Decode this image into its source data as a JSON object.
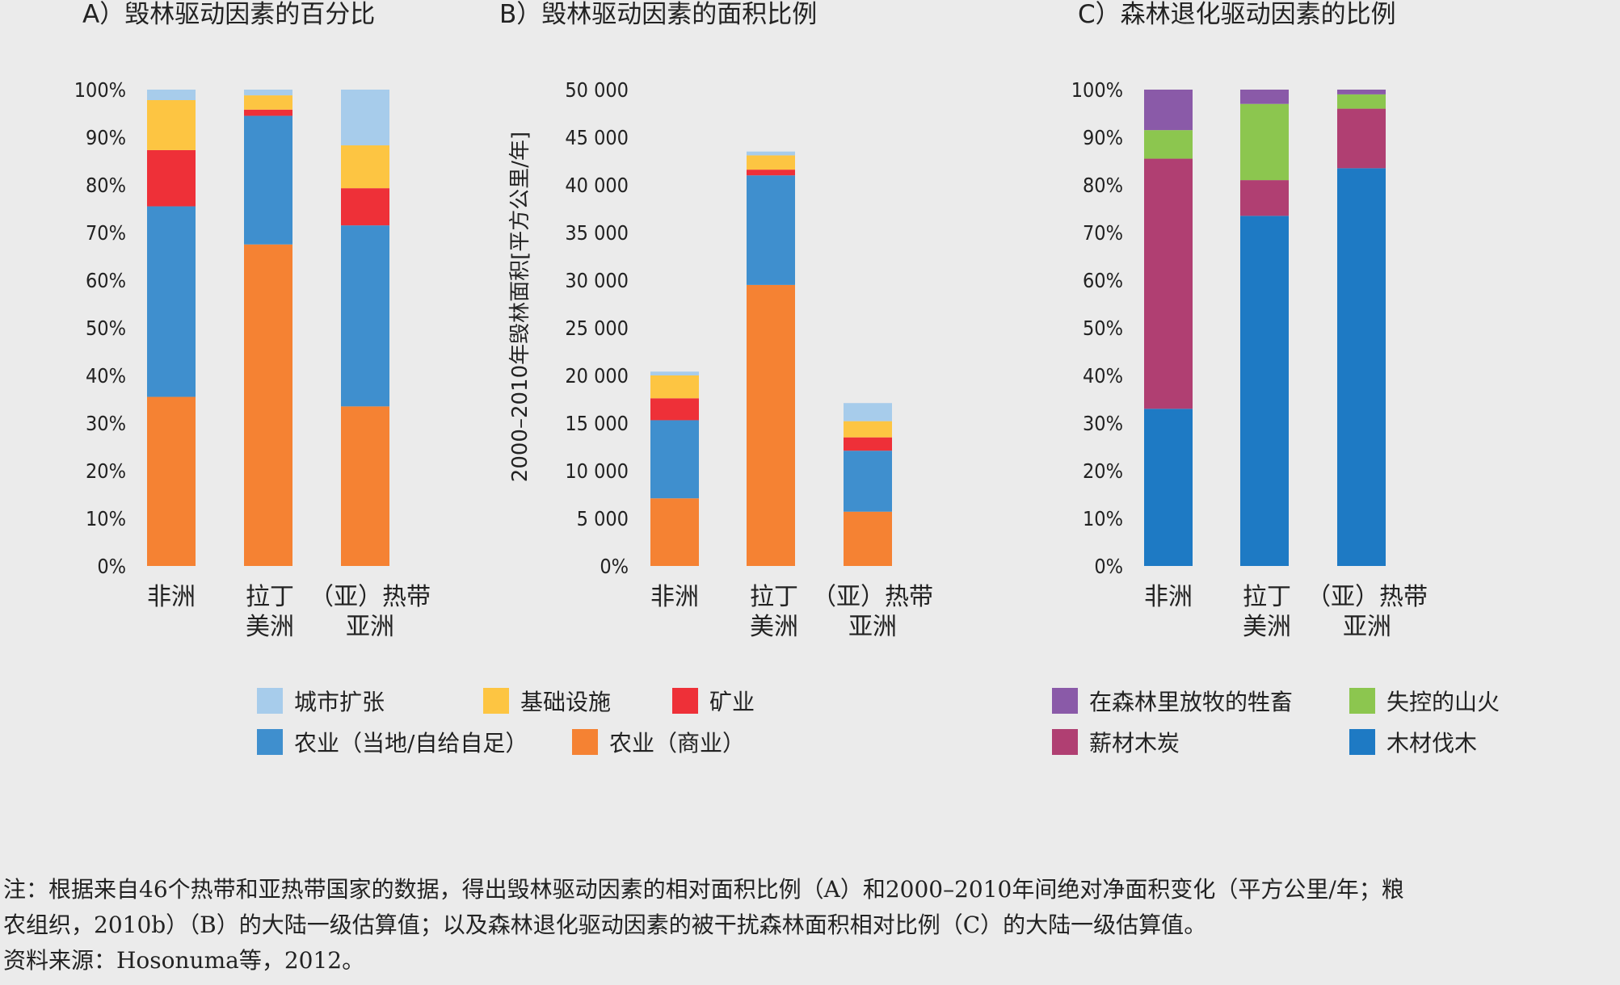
{
  "chart_data": [
    {
      "type": "bar",
      "stacked": true,
      "title": "A）毁林驱动因素的百分比",
      "xlabel": "",
      "ylabel": "",
      "ylim": [
        0,
        100
      ],
      "yticks": [
        "0%",
        "10%",
        "20%",
        "30%",
        "40%",
        "50%",
        "60%",
        "70%",
        "80%",
        "90%",
        "100%"
      ],
      "categories": [
        [
          "非洲"
        ],
        [
          "拉丁",
          "美洲"
        ],
        [
          "（亚）热带",
          "亚洲"
        ]
      ],
      "series": [
        {
          "name": "农业（商业）",
          "color": "#f58233",
          "values": [
            35.5,
            67.5,
            33.5
          ]
        },
        {
          "name": "农业（当地/自给自足）",
          "color": "#3f8fce",
          "values": [
            40,
            27,
            38
          ]
        },
        {
          "name": "矿业",
          "color": "#ee3038",
          "values": [
            11.8,
            1.3,
            7.8
          ]
        },
        {
          "name": "基础设施",
          "color": "#fdc542",
          "values": [
            10.5,
            3,
            9
          ]
        },
        {
          "name": "城市扩张",
          "color": "#a7cceb",
          "values": [
            2.2,
            1.2,
            11.7
          ]
        }
      ]
    },
    {
      "type": "bar",
      "stacked": true,
      "title": "B）毁林驱动因素的面积比例",
      "xlabel": "",
      "ylabel": "2000–2010年毁林面积[平方公里/年]",
      "ylim": [
        0,
        50000
      ],
      "yticks": [
        "0%",
        "5 000",
        "10 000",
        "15 000",
        "20 000",
        "25 000",
        "30 000",
        "35 000",
        "40 000",
        "45 000",
        "50 000"
      ],
      "categories": [
        [
          "非洲"
        ],
        [
          "拉丁",
          "美洲"
        ],
        [
          "（亚）热带",
          "亚洲"
        ]
      ],
      "series": [
        {
          "name": "农业（商业）",
          "color": "#f58233",
          "values": [
            7100,
            29500,
            5700
          ]
        },
        {
          "name": "农业（当地/自给自足）",
          "color": "#3f8fce",
          "values": [
            8200,
            11500,
            6400
          ]
        },
        {
          "name": "矿业",
          "color": "#ee3038",
          "values": [
            2300,
            600,
            1400
          ]
        },
        {
          "name": "基础设施",
          "color": "#fdc542",
          "values": [
            2400,
            1500,
            1700
          ]
        },
        {
          "name": "城市扩张",
          "color": "#a7cceb",
          "values": [
            400,
            400,
            1900
          ]
        }
      ]
    },
    {
      "type": "bar",
      "stacked": true,
      "title": "C）森林退化驱动因素的比例",
      "xlabel": "",
      "ylabel": "",
      "ylim": [
        0,
        100
      ],
      "yticks": [
        "0%",
        "10%",
        "20%",
        "30%",
        "40%",
        "50%",
        "60%",
        "70%",
        "80%",
        "90%",
        "100%"
      ],
      "categories": [
        [
          "非洲"
        ],
        [
          "拉丁",
          "美洲"
        ],
        [
          "（亚）热带",
          "亚洲"
        ]
      ],
      "series": [
        {
          "name": "木材伐木",
          "color": "#1e7ac4",
          "values": [
            33,
            73.5,
            83.5
          ]
        },
        {
          "name": "薪材木炭",
          "color": "#b03f72",
          "values": [
            52.5,
            7.5,
            12.5
          ]
        },
        {
          "name": "失控的山火",
          "color": "#8cc64f",
          "values": [
            6,
            16,
            3
          ]
        },
        {
          "name": "在森林里放牧的牲畜",
          "color": "#8a5aa8",
          "values": [
            8.5,
            3,
            1
          ]
        }
      ]
    }
  ],
  "legend_left": {
    "rows": [
      [
        {
          "label": "城市扩张",
          "color": "#a7cceb"
        },
        {
          "label": "基础设施",
          "color": "#fdc542"
        },
        {
          "label": "矿业",
          "color": "#ee3038"
        }
      ],
      [
        {
          "label": "农业（当地/自给自足）",
          "color": "#3f8fce"
        },
        {
          "label": "农业（商业）",
          "color": "#f58233"
        }
      ]
    ]
  },
  "legend_right": {
    "rows": [
      [
        {
          "label": "在森林里放牧的牲畜",
          "color": "#8a5aa8"
        },
        {
          "label": "失控的山火",
          "color": "#8cc64f"
        }
      ],
      [
        {
          "label": "薪材木炭",
          "color": "#b03f72"
        },
        {
          "label": "木材伐木",
          "color": "#1e7ac4"
        }
      ]
    ]
  },
  "note": {
    "line1": "注：根据来自46个热带和亚热带国家的数据，得出毁林驱动因素的相对面积比例（A）和2000–2010年间绝对净面积变化（平方公里/年；粮",
    "line2": "农组织，2010b）（B）的大陆一级估算值；以及森林退化驱动因素的被干扰森林面积相对比例（C）的大陆一级估算值。",
    "source": "资料来源：Hosonuma等，2012。"
  }
}
